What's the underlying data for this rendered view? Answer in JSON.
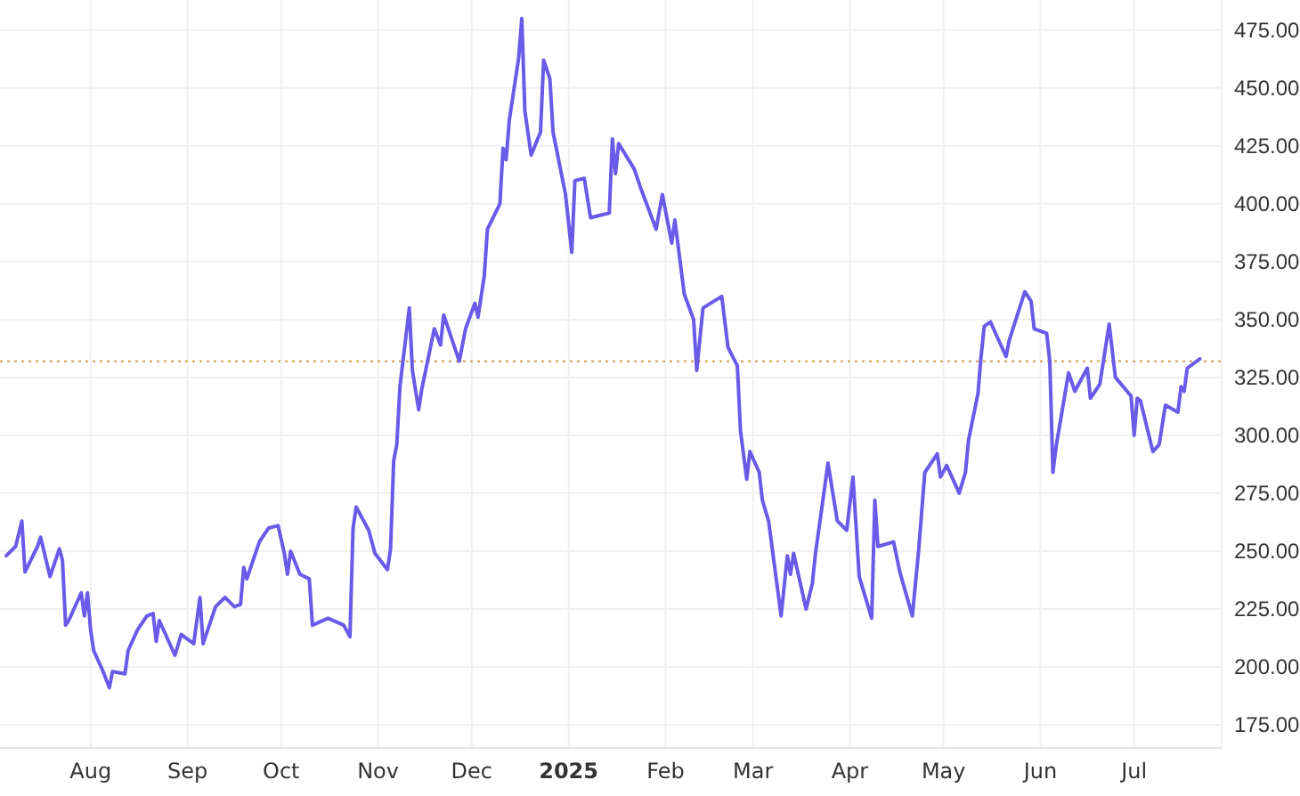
{
  "chart_data": {
    "type": "line",
    "x": [
      "2024-07-05",
      "2024-07-08",
      "2024-07-10",
      "2024-07-11",
      "2024-07-15",
      "2024-07-16",
      "2024-07-19",
      "2024-07-22",
      "2024-07-23",
      "2024-07-24",
      "2024-07-25",
      "2024-07-29",
      "2024-07-30",
      "2024-07-31",
      "2024-08-01",
      "2024-08-02",
      "2024-08-05",
      "2024-08-07",
      "2024-08-08",
      "2024-08-12",
      "2024-08-13",
      "2024-08-16",
      "2024-08-19",
      "2024-08-21",
      "2024-08-22",
      "2024-08-23",
      "2024-08-28",
      "2024-08-30",
      "2024-09-03",
      "2024-09-05",
      "2024-09-06",
      "2024-09-10",
      "2024-09-13",
      "2024-09-16",
      "2024-09-18",
      "2024-09-19",
      "2024-09-20",
      "2024-09-24",
      "2024-09-27",
      "2024-09-30",
      "2024-10-02",
      "2024-10-03",
      "2024-10-04",
      "2024-10-07",
      "2024-10-10",
      "2024-10-11",
      "2024-10-16",
      "2024-10-21",
      "2024-10-23",
      "2024-10-24",
      "2024-10-25",
      "2024-10-29",
      "2024-10-31",
      "2024-11-04",
      "2024-11-05",
      "2024-11-06",
      "2024-11-07",
      "2024-11-08",
      "2024-11-11",
      "2024-11-12",
      "2024-11-14",
      "2024-11-15",
      "2024-11-19",
      "2024-11-21",
      "2024-11-22",
      "2024-11-27",
      "2024-11-29",
      "2024-12-02",
      "2024-12-03",
      "2024-12-05",
      "2024-12-06",
      "2024-12-10",
      "2024-12-11",
      "2024-12-12",
      "2024-12-13",
      "2024-12-16",
      "2024-12-17",
      "2024-12-18",
      "2024-12-20",
      "2024-12-23",
      "2024-12-24",
      "2024-12-26",
      "2024-12-27",
      "2024-12-31",
      "2025-01-02",
      "2025-01-03",
      "2025-01-06",
      "2025-01-08",
      "2025-01-14",
      "2025-01-15",
      "2025-01-16",
      "2025-01-17",
      "2025-01-22",
      "2025-01-24",
      "2025-01-29",
      "2025-01-31",
      "2025-02-03",
      "2025-02-04",
      "2025-02-07",
      "2025-02-10",
      "2025-02-11",
      "2025-02-13",
      "2025-02-19",
      "2025-02-21",
      "2025-02-24",
      "2025-02-25",
      "2025-02-27",
      "2025-02-28",
      "2025-03-03",
      "2025-03-04",
      "2025-03-06",
      "2025-03-10",
      "2025-03-12",
      "2025-03-13",
      "2025-03-14",
      "2025-03-18",
      "2025-03-20",
      "2025-03-21",
      "2025-03-24",
      "2025-03-25",
      "2025-03-28",
      "2025-03-31",
      "2025-04-02",
      "2025-04-04",
      "2025-04-08",
      "2025-04-09",
      "2025-04-10",
      "2025-04-15",
      "2025-04-17",
      "2025-04-21",
      "2025-04-23",
      "2025-04-25",
      "2025-04-29",
      "2025-04-30",
      "2025-05-02",
      "2025-05-06",
      "2025-05-08",
      "2025-05-09",
      "2025-05-12",
      "2025-05-13",
      "2025-05-14",
      "2025-05-16",
      "2025-05-21",
      "2025-05-22",
      "2025-05-27",
      "2025-05-29",
      "2025-05-30",
      "2025-06-03",
      "2025-06-04",
      "2025-06-05",
      "2025-06-06",
      "2025-06-10",
      "2025-06-12",
      "2025-06-16",
      "2025-06-17",
      "2025-06-20",
      "2025-06-23",
      "2025-06-25",
      "2025-06-30",
      "2025-07-01",
      "2025-07-02",
      "2025-07-03",
      "2025-07-07",
      "2025-07-09",
      "2025-07-11",
      "2025-07-15",
      "2025-07-16",
      "2025-07-17",
      "2025-07-18",
      "2025-07-22"
    ],
    "series": [
      {
        "color": "#6a5ae8",
        "values": [
          248,
          252,
          263,
          241,
          252,
          256,
          239,
          251,
          246,
          218,
          220,
          232,
          222,
          232,
          216,
          207,
          198,
          191,
          198,
          197,
          207,
          216,
          222,
          223,
          211,
          220,
          205,
          214,
          210,
          230,
          210,
          226,
          230,
          226,
          227,
          243,
          238,
          254,
          260,
          261,
          249,
          240,
          250,
          240,
          238,
          218,
          221,
          218,
          213,
          260,
          269,
          259,
          249,
          242,
          251,
          289,
          296,
          321,
          355,
          328,
          311,
          320,
          346,
          339,
          352,
          332,
          346,
          357,
          351,
          369,
          389,
          400,
          424,
          419,
          436,
          463,
          480,
          440,
          421,
          431,
          462,
          454,
          431,
          404,
          379,
          410,
          411,
          394,
          396,
          428,
          413,
          426,
          415,
          407,
          389,
          404,
          383,
          393,
          361,
          350,
          328,
          355,
          360,
          338,
          330,
          302,
          281,
          293,
          284,
          272,
          263,
          222,
          248,
          240,
          249,
          225,
          236,
          249,
          278,
          288,
          263,
          259,
          282,
          239,
          221,
          272,
          252,
          254,
          241,
          222,
          250,
          284,
          292,
          282,
          287,
          275,
          284,
          298,
          318,
          334,
          347,
          349,
          334,
          341,
          362,
          358,
          346,
          344,
          332,
          284,
          295,
          327,
          319,
          329,
          316,
          322,
          348,
          325,
          317,
          300,
          316,
          315,
          293,
          296,
          313,
          310,
          321,
          319,
          329,
          333
        ]
      }
    ],
    "xlim": [
      "2024-07-03",
      "2025-07-29"
    ],
    "xticks": [
      {
        "value": "2024-08-01",
        "label": "Aug"
      },
      {
        "value": "2024-09-01",
        "label": "Sep"
      },
      {
        "value": "2024-10-01",
        "label": "Oct"
      },
      {
        "value": "2024-11-01",
        "label": "Nov"
      },
      {
        "value": "2024-12-01",
        "label": "Dec"
      },
      {
        "value": "2025-01-01",
        "label": "2025"
      },
      {
        "value": "2025-02-01",
        "label": "Feb"
      },
      {
        "value": "2025-03-01",
        "label": "Mar"
      },
      {
        "value": "2025-04-01",
        "label": "Apr"
      },
      {
        "value": "2025-05-01",
        "label": "May"
      },
      {
        "value": "2025-06-01",
        "label": "Jun"
      },
      {
        "value": "2025-07-01",
        "label": "Jul"
      }
    ],
    "ylim": [
      165,
      488
    ],
    "yticks": [
      {
        "value": 175,
        "label": "175.00"
      },
      {
        "value": 200,
        "label": "200.00"
      },
      {
        "value": 225,
        "label": "225.00"
      },
      {
        "value": 250,
        "label": "250.00"
      },
      {
        "value": 275,
        "label": "275.00"
      },
      {
        "value": 300,
        "label": "300.00"
      },
      {
        "value": 325,
        "label": "325.00"
      },
      {
        "value": 350,
        "label": "350.00"
      },
      {
        "value": 375,
        "label": "375.00"
      },
      {
        "value": 400,
        "label": "400.00"
      },
      {
        "value": 425,
        "label": "425.00"
      },
      {
        "value": 450,
        "label": "450.00"
      },
      {
        "value": 475,
        "label": "475.00"
      }
    ],
    "ref_lines": [
      {
        "axis": "y",
        "value": 332,
        "color": "#c9a04e",
        "line_style": "dotted"
      }
    ],
    "grid": true,
    "line_style": "solid",
    "marker": "none"
  }
}
